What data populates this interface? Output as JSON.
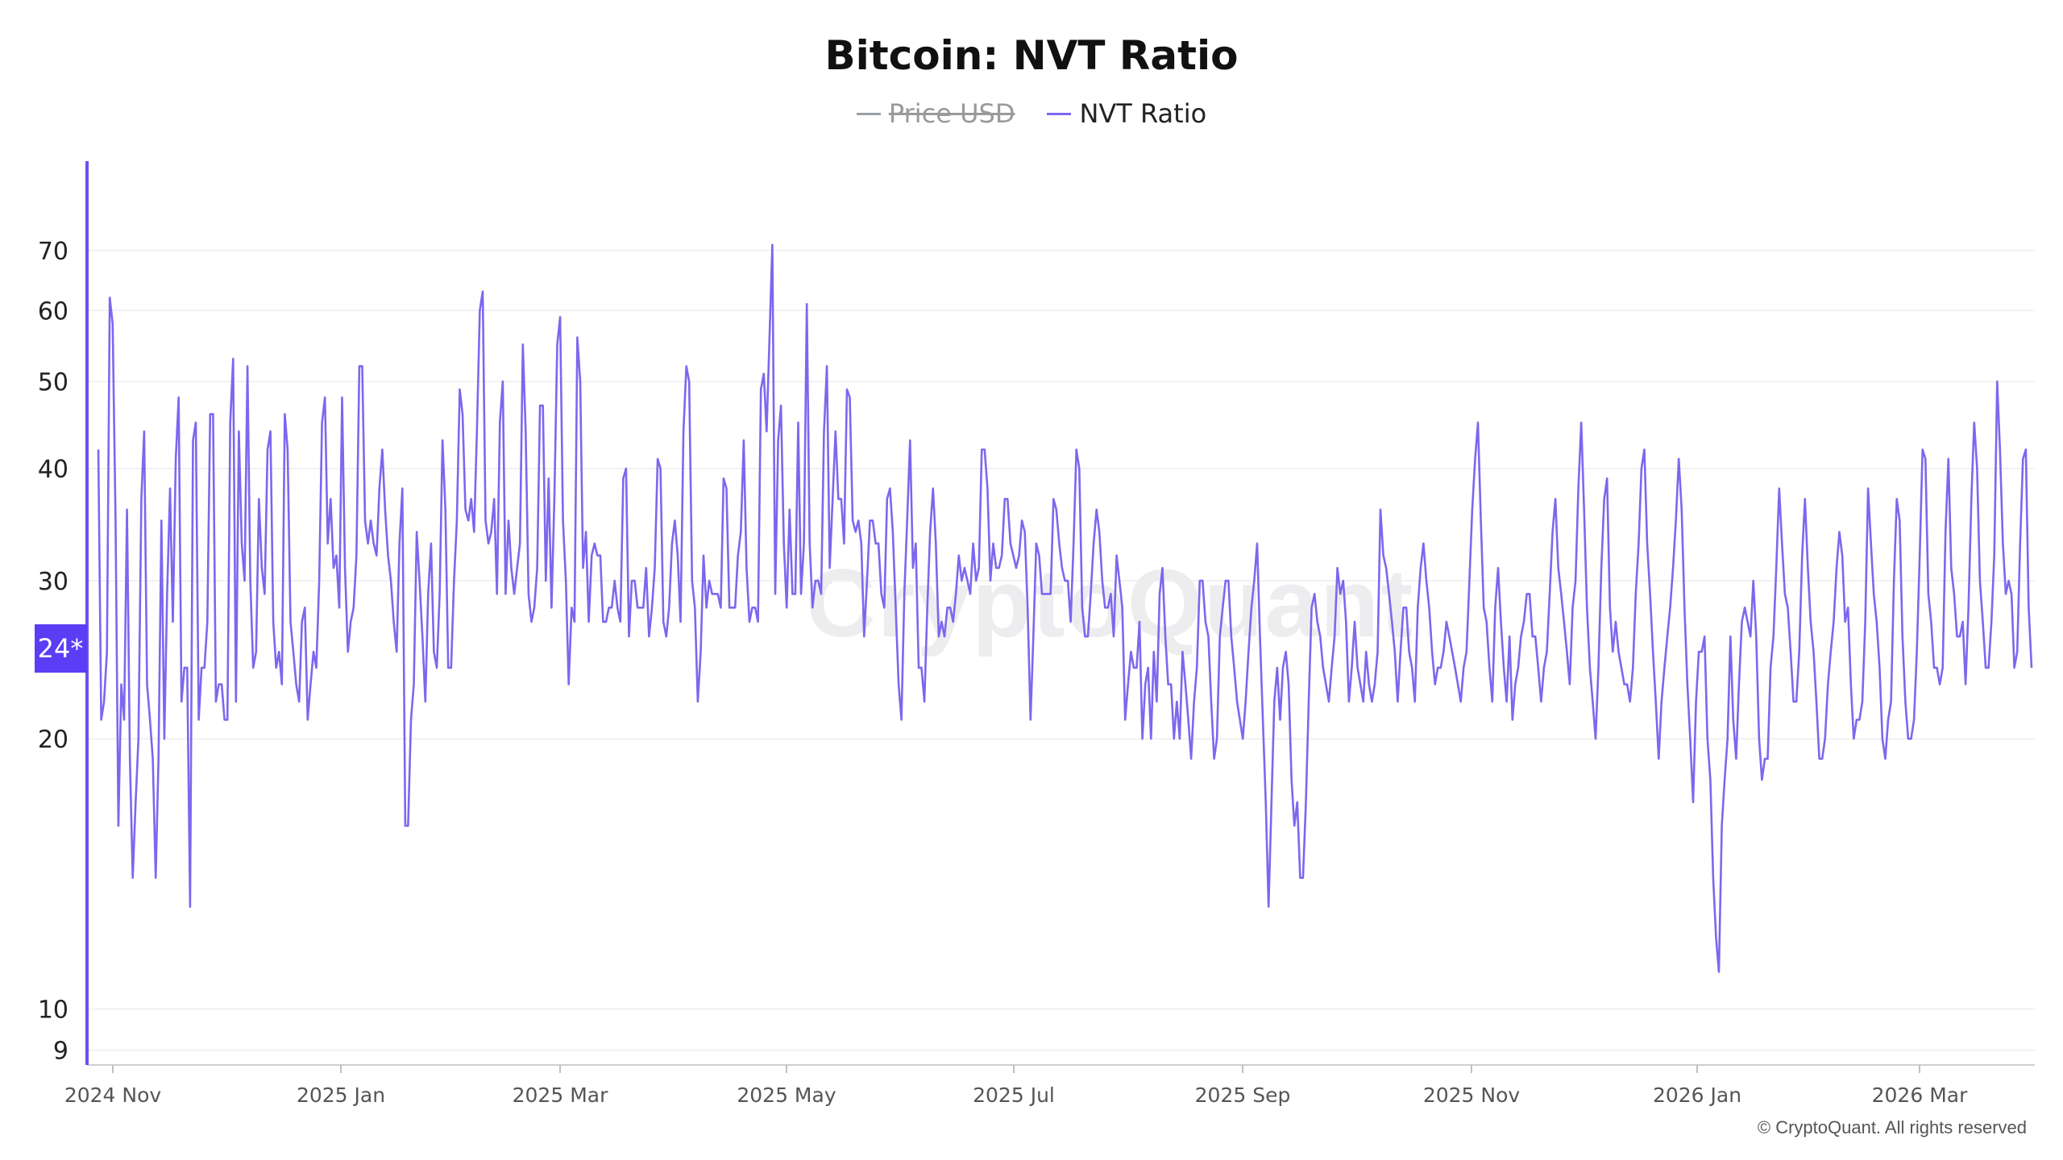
{
  "chart_data": {
    "type": "line",
    "title": "Bitcoin: NVT Ratio",
    "legend": [
      {
        "name": "Price USD",
        "color": "#9aa0a6",
        "hidden": true
      },
      {
        "name": "NVT Ratio",
        "color": "#7b68ee",
        "hidden": false
      }
    ],
    "x_ticks": [
      "2024 Nov",
      "2025 Jan",
      "2025 Mar",
      "2025 May",
      "2025 Jul",
      "2025 Sep",
      "2025 Nov",
      "2026 Jan",
      "2026 Mar"
    ],
    "y_ticks": [
      9,
      10,
      20,
      30,
      40,
      50,
      60,
      70
    ],
    "y_scale": "log",
    "ylim": [
      8.7,
      88
    ],
    "current_value_label": "24*",
    "series": [
      {
        "name": "NVT Ratio",
        "color": "#7b68ee",
        "values": [
          42,
          21,
          22,
          25,
          62,
          58,
          35,
          16,
          23,
          21,
          36,
          19,
          14,
          17,
          20,
          37,
          44,
          23,
          21,
          19,
          14,
          19,
          35,
          20,
          29,
          38,
          27,
          41,
          48,
          22,
          24,
          24,
          13,
          43,
          45,
          21,
          24,
          24,
          27,
          46,
          46,
          22,
          23,
          23,
          21,
          21,
          45,
          53,
          22,
          44,
          33,
          30,
          52,
          30,
          24,
          25,
          37,
          31,
          29,
          42,
          44,
          27,
          24,
          25,
          23,
          46,
          42,
          27,
          25,
          23,
          22,
          27,
          28,
          21,
          23,
          25,
          24,
          30,
          45,
          48,
          33,
          37,
          31,
          32,
          28,
          48,
          31,
          25,
          27,
          28,
          32,
          52,
          52,
          35,
          33,
          35,
          33,
          32,
          38,
          42,
          36,
          32,
          30,
          27,
          25,
          33,
          38,
          16,
          16,
          21,
          23,
          34,
          30,
          26,
          22,
          29,
          33,
          25,
          24,
          29,
          43,
          36,
          24,
          24,
          30,
          35,
          49,
          46,
          36,
          35,
          37,
          34,
          44,
          60,
          63,
          35,
          33,
          34,
          37,
          29,
          45,
          50,
          29,
          35,
          31,
          29,
          31,
          33,
          55,
          44,
          29,
          27,
          28,
          31,
          47,
          47,
          30,
          39,
          28,
          37,
          55,
          59,
          35,
          30,
          23,
          28,
          27,
          56,
          50,
          31,
          34,
          27,
          32,
          33,
          32,
          32,
          27,
          27,
          28,
          28,
          30,
          28,
          27,
          39,
          40,
          26,
          30,
          30,
          28,
          28,
          28,
          31,
          26,
          28,
          31,
          41,
          40,
          27,
          26,
          28,
          33,
          35,
          32,
          27,
          44,
          52,
          50,
          30,
          28,
          22,
          25,
          32,
          28,
          30,
          29,
          29,
          29,
          28,
          39,
          38,
          28,
          28,
          28,
          32,
          34,
          43,
          31,
          27,
          28,
          28,
          27,
          49,
          51,
          44,
          56,
          71,
          29,
          43,
          47,
          33,
          28,
          36,
          29,
          29,
          45,
          29,
          33,
          61,
          33,
          28,
          30,
          30,
          29,
          44,
          52,
          31,
          37,
          44,
          37,
          37,
          33,
          49,
          48,
          35,
          34,
          35,
          33,
          26,
          30,
          35,
          35,
          33,
          33,
          29,
          28,
          37,
          38,
          34,
          28,
          23,
          21,
          29,
          35,
          43,
          31,
          33,
          24,
          24,
          22,
          28,
          34,
          38,
          33,
          26,
          27,
          26,
          28,
          28,
          27,
          29,
          32,
          30,
          31,
          30,
          29,
          33,
          30,
          31,
          42,
          42,
          38,
          30,
          33,
          31,
          31,
          32,
          37,
          37,
          33,
          32,
          31,
          32,
          35,
          34,
          28,
          21,
          26,
          33,
          32,
          29,
          29,
          29,
          29,
          37,
          36,
          33,
          31,
          30,
          30,
          27,
          33,
          42,
          40,
          28,
          26,
          26,
          29,
          33,
          36,
          34,
          30,
          28,
          28,
          29,
          26,
          32,
          30,
          28,
          21,
          23,
          25,
          24,
          24,
          27,
          20,
          23,
          24,
          20,
          25,
          22,
          29,
          31,
          26,
          23,
          23,
          20,
          22,
          20,
          25,
          23,
          21,
          19,
          22,
          24,
          30,
          30,
          27,
          26,
          22,
          19,
          20,
          26,
          28,
          30,
          30,
          26,
          24,
          22,
          21,
          20,
          22,
          25,
          28,
          30,
          33,
          26,
          21,
          17,
          13,
          17,
          22,
          24,
          21,
          24,
          25,
          23,
          18,
          16,
          17,
          14,
          14,
          17,
          22,
          28,
          29,
          27,
          26,
          24,
          23,
          22,
          24,
          26,
          31,
          29,
          30,
          27,
          22,
          24,
          27,
          24,
          23,
          22,
          25,
          23,
          22,
          23,
          25,
          36,
          32,
          31,
          29,
          27,
          25,
          22,
          25,
          28,
          28,
          25,
          24,
          22,
          28,
          31,
          33,
          30,
          28,
          25,
          23,
          24,
          24,
          25,
          27,
          26,
          25,
          24,
          23,
          22,
          24,
          25,
          30,
          36,
          41,
          45,
          35,
          28,
          27,
          24,
          22,
          28,
          31,
          27,
          24,
          22,
          26,
          21,
          23,
          24,
          26,
          27,
          29,
          29,
          26,
          26,
          24,
          22,
          24,
          25,
          29,
          34,
          37,
          31,
          29,
          27,
          25,
          23,
          28,
          30,
          38,
          45,
          36,
          28,
          24,
          22,
          20,
          24,
          31,
          37,
          39,
          28,
          25,
          27,
          25,
          24,
          23,
          23,
          22,
          24,
          29,
          33,
          40,
          42,
          33,
          29,
          25,
          22,
          19,
          22,
          24,
          26,
          28,
          31,
          35,
          41,
          36,
          28,
          23,
          20,
          17,
          22,
          25,
          25,
          26,
          20,
          18,
          14,
          12,
          11,
          16,
          18,
          20,
          26,
          21,
          19,
          23,
          27,
          28,
          27,
          26,
          30,
          26,
          20,
          18,
          19,
          19,
          24,
          26,
          31,
          38,
          33,
          29,
          28,
          25,
          22,
          22,
          25,
          32,
          37,
          31,
          27,
          25,
          22,
          19,
          19,
          20,
          23,
          25,
          27,
          31,
          34,
          32,
          27,
          28,
          23,
          20,
          21,
          21,
          22,
          27,
          38,
          33,
          29,
          27,
          24,
          20,
          19,
          21,
          22,
          30,
          37,
          35,
          26,
          22,
          20,
          20,
          21,
          25,
          32,
          42,
          41,
          29,
          27,
          24,
          24,
          23,
          24,
          34,
          41,
          31,
          29,
          26,
          26,
          27,
          23,
          28,
          37,
          45,
          40,
          30,
          27,
          24,
          24,
          27,
          32,
          50,
          42,
          33,
          29,
          30,
          29,
          24,
          25,
          33,
          41,
          42,
          28,
          24
        ]
      }
    ]
  },
  "copyright": "© CryptoQuant. All rights reserved",
  "watermark": "CryptoQuant"
}
